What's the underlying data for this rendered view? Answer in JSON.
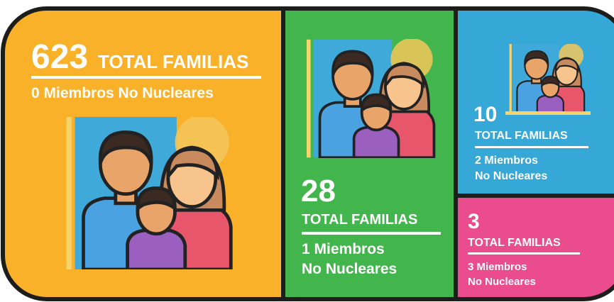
{
  "panels": [
    {
      "number": "623",
      "label": "TOTAL FAMILIAS",
      "members": [
        "0 Miembros No Nucleares"
      ]
    },
    {
      "number": "28",
      "label": "TOTAL FAMILIAS",
      "members": [
        "1 Miembros",
        "No Nucleares"
      ]
    },
    {
      "number": "10",
      "label": "TOTAL FAMILIAS",
      "members": [
        "2 Miembros",
        "No Nucleares"
      ]
    },
    {
      "number": "3",
      "label": "TOTAL FAMILIAS",
      "members": [
        "3 Miembros",
        "No Nucleares"
      ]
    }
  ]
}
